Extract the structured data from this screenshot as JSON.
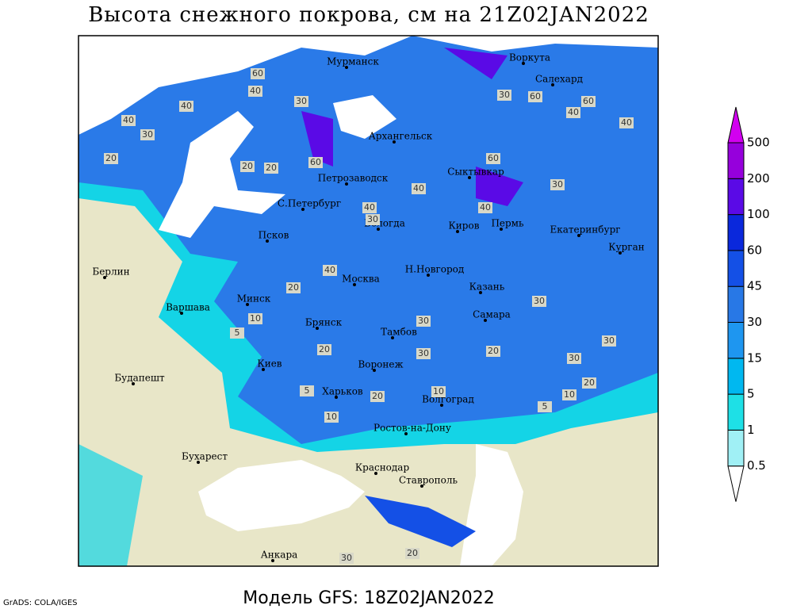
{
  "title": "Высота снежного покрова, см на 21Z02JAN2022",
  "footer": "Модель GFS: 18Z02JAN2022",
  "credit": "GrADS: COLA/IGES",
  "cities": [
    "Мурманск",
    "Воркута",
    "Салехард",
    "Архангельск",
    "Сыктывкар",
    "Петрозаводск",
    "С.Петербург",
    "Вологда",
    "Киров",
    "Пермь",
    "Екатеринбург",
    "Курган",
    "Псков",
    "Берлин",
    "Н.Новгород",
    "Москва",
    "Казань",
    "Минск",
    "Варшава",
    "Самара",
    "Брянск",
    "Тамбов",
    "Киев",
    "Воронеж",
    "Будапешт",
    "Харьков",
    "Волгоград",
    "Ростов-на-Дону",
    "Бухарест",
    "Краснодар",
    "Ставрополь",
    "Анкара"
  ],
  "contour_labels": [
    60,
    40,
    40,
    40,
    30,
    20,
    20,
    20,
    30,
    60,
    40,
    40,
    30,
    40,
    30,
    60,
    40,
    40,
    60,
    60,
    30,
    40,
    20,
    10,
    5,
    20,
    30,
    30,
    30,
    30,
    30,
    20,
    10,
    5,
    5,
    10,
    20,
    10,
    20,
    30,
    20
  ],
  "colorbar": {
    "levels": [
      0.5,
      1,
      5,
      15,
      30,
      45,
      60,
      100,
      200,
      500
    ],
    "colors": [
      "#ffffff",
      "#a0f0f5",
      "#1ee0e6",
      "#00b8f0",
      "#1e96f0",
      "#2878e6",
      "#1450e6",
      "#0a28dc",
      "#5a0ae6",
      "#9600dc",
      "#d200f0"
    ]
  }
}
